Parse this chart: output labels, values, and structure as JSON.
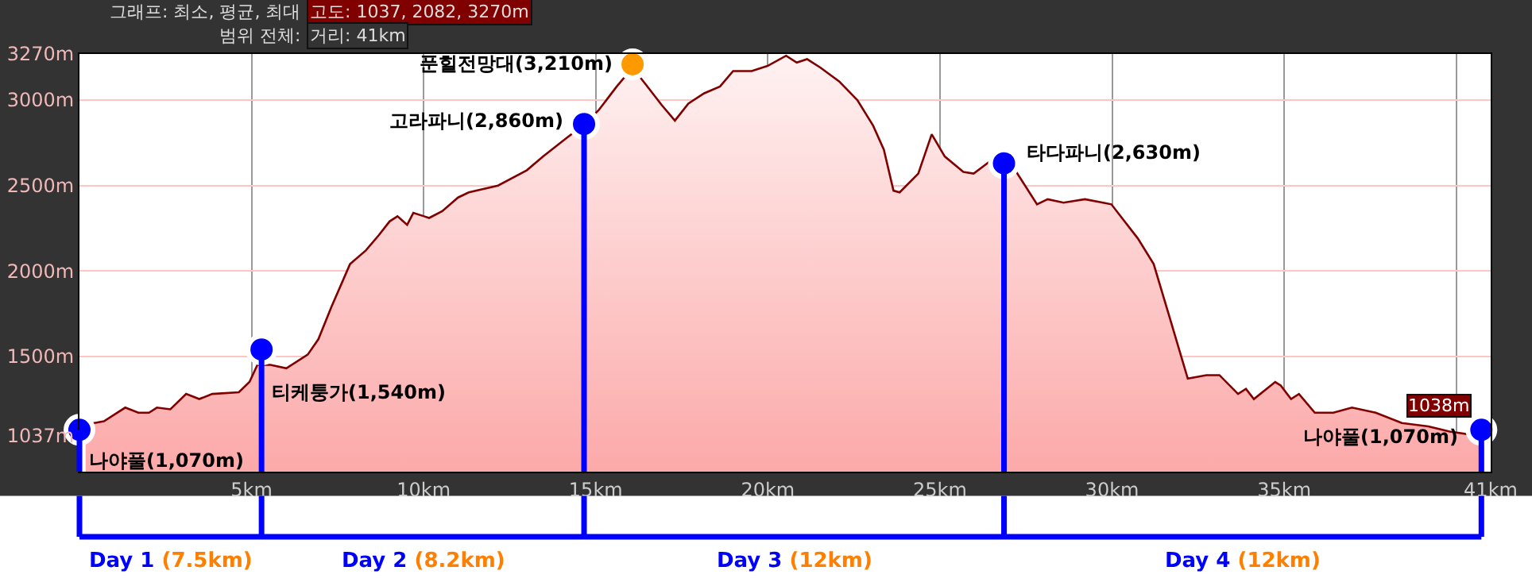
{
  "chart_data": {
    "type": "area",
    "xlim": [
      0,
      41
    ],
    "ylim": [
      825,
      3270
    ],
    "xticks": [
      {
        "value": 5,
        "label": "5km"
      },
      {
        "value": 10,
        "label": "10km"
      },
      {
        "value": 15,
        "label": "15km"
      },
      {
        "value": 20,
        "label": "20km"
      },
      {
        "value": 25,
        "label": "25km"
      },
      {
        "value": 30,
        "label": "30km"
      },
      {
        "value": 35,
        "label": "35km"
      },
      {
        "value": 40,
        "label": null
      },
      {
        "value": 41,
        "label": "41km"
      }
    ],
    "yticks": [
      {
        "value": 1037,
        "label": "1037m"
      },
      {
        "value": 1500,
        "label": "1500m"
      },
      {
        "value": 2000,
        "label": "2000m"
      },
      {
        "value": 2500,
        "label": "2500m"
      },
      {
        "value": 3000,
        "label": "3000m"
      },
      {
        "value": 3270,
        "label": "3270m"
      }
    ],
    "grid": true,
    "series": [
      {
        "color": "#800000",
        "x": [
          0.18,
          0.71,
          1.33,
          1.71,
          2.02,
          2.25,
          2.64,
          3.1,
          3.48,
          3.86,
          4.63,
          4.94,
          5.17,
          5.55,
          6.01,
          6.63,
          6.94,
          7.32,
          7.86,
          8.32,
          8.7,
          9.01,
          9.24,
          9.52,
          9.7,
          10.01,
          10.16,
          10.54,
          11.0,
          11.31,
          12.16,
          13.0,
          13.47,
          14.16,
          14.62,
          15.08,
          15.61,
          16.07,
          16.46,
          16.92,
          17.3,
          17.69,
          18.15,
          18.61,
          18.99,
          19.53,
          19.99,
          20.53,
          20.84,
          21.14,
          21.53,
          22.07,
          22.6,
          23.06,
          23.37,
          23.65,
          23.83,
          24.37,
          24.76,
          25.14,
          25.68,
          25.98,
          26.44,
          27.06,
          27.82,
          28.13,
          28.59,
          29.21,
          29.98,
          30.75,
          31.21,
          31.67,
          32.2,
          32.74,
          33.12,
          33.66,
          33.89,
          34.12,
          34.74,
          34.9,
          35.2,
          35.43,
          35.89,
          36.43,
          36.97,
          37.66,
          38.42,
          39.19,
          39.81,
          40.81
        ],
        "values": [
          1100,
          1120,
          1200,
          1170,
          1170,
          1200,
          1190,
          1280,
          1250,
          1280,
          1290,
          1350,
          1450,
          1450,
          1430,
          1510,
          1600,
          1790,
          2040,
          2120,
          2210,
          2290,
          2320,
          2270,
          2340,
          2320,
          2310,
          2350,
          2430,
          2460,
          2500,
          2590,
          2670,
          2780,
          2850,
          2940,
          3080,
          3190,
          3090,
          2970,
          2880,
          2980,
          3040,
          3080,
          3170,
          3170,
          3200,
          3260,
          3220,
          3240,
          3190,
          3110,
          3000,
          2850,
          2710,
          2470,
          2460,
          2570,
          2800,
          2670,
          2580,
          2570,
          2640,
          2630,
          2390,
          2420,
          2400,
          2420,
          2390,
          2190,
          2040,
          1730,
          1370,
          1390,
          1390,
          1280,
          1310,
          1250,
          1350,
          1330,
          1250,
          1280,
          1170,
          1170,
          1200,
          1170,
          1110,
          1090,
          1060,
          1030
        ]
      },
      {
        "type": "scatter",
        "marker": "circle",
        "x": [
          0,
          5.29,
          14.66,
          16.07,
          26.86,
          40.73
        ],
        "values": [
          1070,
          1540,
          2860,
          3210,
          2630,
          1070
        ],
        "colors": [
          "#0000ff",
          "#0000ff",
          "#0000ff",
          "#ff9900",
          "#0000ff",
          "#0000ff"
        ]
      }
    ],
    "ref_lines": [
      {
        "axis": "x",
        "value": 0,
        "color": "#0000ff"
      },
      {
        "axis": "x",
        "value": 5.29,
        "color": "#0000ff"
      },
      {
        "axis": "x",
        "value": 14.66,
        "color": "#0000ff"
      },
      {
        "axis": "x",
        "value": 26.86,
        "color": "#0000ff"
      },
      {
        "axis": "x",
        "value": 40.73,
        "color": "#0000ff"
      }
    ],
    "annotations": [
      "그래프: 최소, 평균, 최대",
      "고도: 1037, 2082, 3270m",
      "범위 전체:",
      "거리: 41km",
      "Day 1 (7.5km)",
      "Day 2 (8.2km)",
      "Day 3 (12km)",
      "Day 4 (12km)",
      {
        "text": "나야풀(1,070m)",
        "x": 0,
        "y": 1070
      },
      {
        "text": "티케퉁가(1,540m)",
        "x": 5.29,
        "y": 1540
      },
      {
        "text": "고라파니(2,860m)",
        "x": 14.66,
        "y": 2860
      },
      {
        "text": "푼힐전망대(3,210m)",
        "x": 16.07,
        "y": 3210
      },
      {
        "text": "타다파니(2,630m)",
        "x": 26.86,
        "y": 2630
      },
      {
        "text": "나야풀(1,070m)",
        "x": 40.73,
        "y": 1070
      },
      {
        "text": "1038m",
        "x": 41,
        "y": 1038
      }
    ]
  }
}
